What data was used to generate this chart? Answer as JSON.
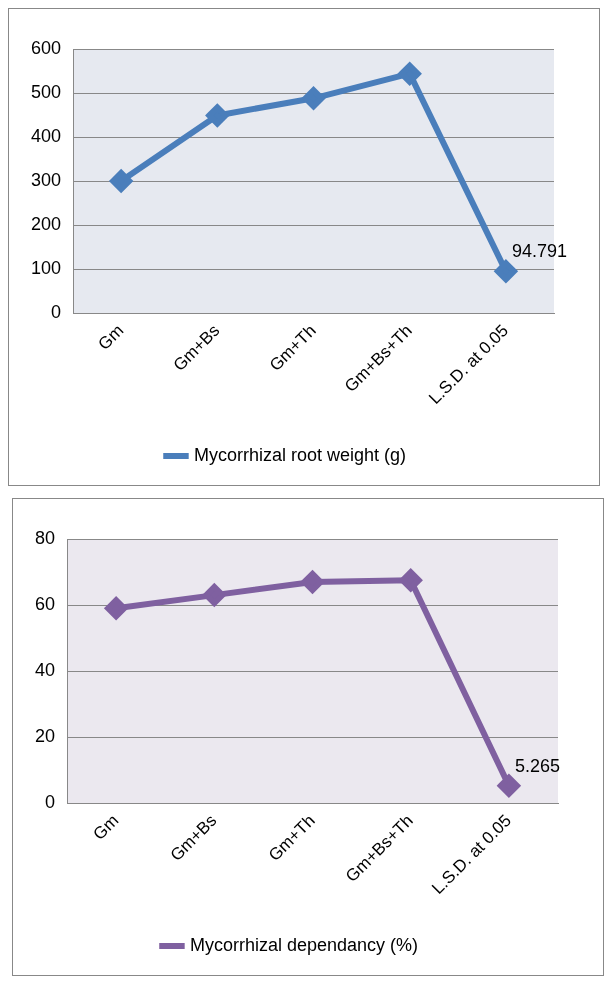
{
  "chart_data": [
    {
      "type": "line",
      "categories": [
        "Gm",
        "Gm+Bs",
        "Gm+Th",
        "Gm+Bs+Th",
        "L.S.D. at 0.05"
      ],
      "series": [
        {
          "name": "Mycorrhizal root weight (g)",
          "color": "#4a7ebb",
          "values": [
            300,
            449,
            488,
            544,
            94.791
          ],
          "value_labels": [
            null,
            null,
            null,
            null,
            "94.791"
          ]
        }
      ],
      "ylim": [
        0,
        600
      ],
      "yticks": [
        0,
        100,
        200,
        300,
        400,
        500,
        600
      ],
      "grid": "y",
      "legend": "bottom",
      "marker": "diamond",
      "line_style": "solid"
    },
    {
      "type": "line",
      "categories": [
        "Gm",
        "Gm+Bs",
        "Gm+Th",
        "Gm+Bs+Th",
        "L.S.D. at 0.05"
      ],
      "series": [
        {
          "name": "Mycorrhizal dependancy (%)",
          "color": "#7f60a0",
          "values": [
            59,
            63,
            67,
            67.5,
            5.265
          ],
          "value_labels": [
            null,
            null,
            null,
            null,
            "5.265"
          ]
        }
      ],
      "ylim": [
        0,
        80
      ],
      "yticks": [
        0,
        20,
        40,
        60,
        80
      ],
      "grid": "y",
      "legend": "bottom",
      "marker": "diamond",
      "line_style": "solid"
    }
  ]
}
